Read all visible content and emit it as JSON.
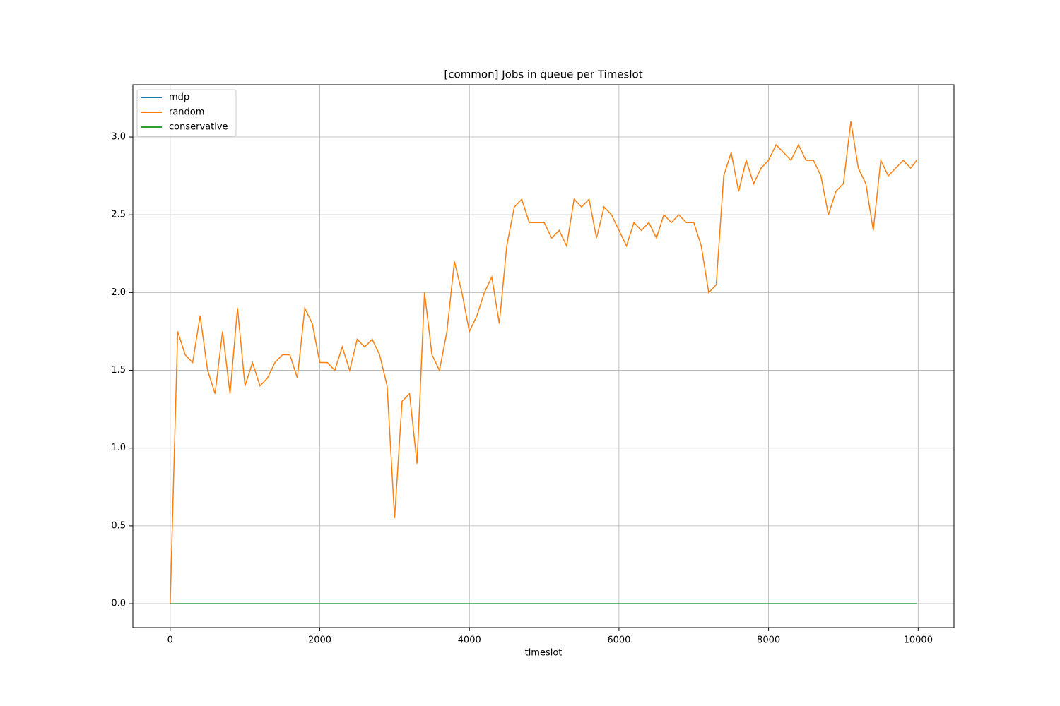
{
  "chart_data": {
    "type": "line",
    "title": "[common] Jobs in queue per Timeslot",
    "x_label": "timeslot",
    "x": [
      0,
      100,
      200,
      300,
      400,
      500,
      600,
      700,
      800,
      900,
      1000,
      1100,
      1200,
      1300,
      1400,
      1500,
      1600,
      1700,
      1800,
      1900,
      2000,
      2100,
      2200,
      2300,
      2400,
      2500,
      2600,
      2700,
      2800,
      2900,
      3000,
      3100,
      3200,
      3300,
      3400,
      3500,
      3600,
      3700,
      3800,
      3900,
      4000,
      4100,
      4200,
      4300,
      4400,
      4500,
      4600,
      4700,
      4800,
      4900,
      5000,
      5100,
      5200,
      5300,
      5400,
      5500,
      5600,
      5700,
      5800,
      5900,
      6000,
      6100,
      6200,
      6300,
      6400,
      6500,
      6600,
      6700,
      6800,
      6900,
      7000,
      7100,
      7200,
      7300,
      7400,
      7500,
      7600,
      7700,
      7800,
      7900,
      8000,
      8100,
      8200,
      8300,
      8400,
      8500,
      8600,
      8700,
      8800,
      8900,
      9000,
      9100,
      9200,
      9300,
      9400,
      9500,
      9600,
      9700,
      9800,
      9900,
      9980
    ],
    "series": [
      {
        "name": "mdp",
        "color": "#1f77b4",
        "values": [
          0,
          0,
          0,
          0,
          0,
          0,
          0,
          0,
          0,
          0,
          0,
          0,
          0,
          0,
          0,
          0,
          0,
          0,
          0,
          0,
          0,
          0,
          0,
          0,
          0,
          0,
          0,
          0,
          0,
          0,
          0,
          0,
          0,
          0,
          0,
          0,
          0,
          0,
          0,
          0,
          0,
          0,
          0,
          0,
          0,
          0,
          0,
          0,
          0,
          0,
          0,
          0,
          0,
          0,
          0,
          0,
          0,
          0,
          0,
          0,
          0,
          0,
          0,
          0,
          0,
          0,
          0,
          0,
          0,
          0,
          0,
          0,
          0,
          0,
          0,
          0,
          0,
          0,
          0,
          0,
          0,
          0,
          0,
          0,
          0,
          0,
          0,
          0,
          0,
          0,
          0,
          0,
          0,
          0,
          0,
          0,
          0,
          0,
          0,
          0,
          0
        ]
      },
      {
        "name": "random",
        "color": "#ff7f0e",
        "values": [
          0,
          1.75,
          1.6,
          1.55,
          1.85,
          1.5,
          1.35,
          1.75,
          1.35,
          1.9,
          1.4,
          1.55,
          1.4,
          1.45,
          1.55,
          1.6,
          1.6,
          1.45,
          1.9,
          1.8,
          1.55,
          1.55,
          1.5,
          1.65,
          1.5,
          1.7,
          1.65,
          1.7,
          1.6,
          1.4,
          0.55,
          1.3,
          1.35,
          0.9,
          2.0,
          1.6,
          1.5,
          1.75,
          2.2,
          2.0,
          1.75,
          1.85,
          2.0,
          2.1,
          1.8,
          2.3,
          2.55,
          2.6,
          2.45,
          2.45,
          2.45,
          2.35,
          2.4,
          2.3,
          2.6,
          2.55,
          2.6,
          2.35,
          2.55,
          2.5,
          2.4,
          2.3,
          2.45,
          2.4,
          2.45,
          2.35,
          2.5,
          2.45,
          2.5,
          2.45,
          2.45,
          2.3,
          2.0,
          2.05,
          2.75,
          2.9,
          2.65,
          2.85,
          2.7,
          2.8,
          2.85,
          2.95,
          2.9,
          2.85,
          2.95,
          2.85,
          2.85,
          2.75,
          2.5,
          2.65,
          2.7,
          3.1,
          2.8,
          2.7,
          2.4,
          2.85,
          2.75,
          2.8,
          2.85,
          2.8,
          2.85
        ]
      },
      {
        "name": "conservative",
        "color": "#2ca02c",
        "values": [
          0,
          0,
          0,
          0,
          0,
          0,
          0,
          0,
          0,
          0,
          0,
          0,
          0,
          0,
          0,
          0,
          0,
          0,
          0,
          0,
          0,
          0,
          0,
          0,
          0,
          0,
          0,
          0,
          0,
          0,
          0,
          0,
          0,
          0,
          0,
          0,
          0,
          0,
          0,
          0,
          0,
          0,
          0,
          0,
          0,
          0,
          0,
          0,
          0,
          0,
          0,
          0,
          0,
          0,
          0,
          0,
          0,
          0,
          0,
          0,
          0,
          0,
          0,
          0,
          0,
          0,
          0,
          0,
          0,
          0,
          0,
          0,
          0,
          0,
          0,
          0,
          0,
          0,
          0,
          0,
          0,
          0,
          0,
          0,
          0,
          0,
          0,
          0,
          0,
          0,
          0,
          0,
          0,
          0,
          0,
          0,
          0,
          0,
          0,
          0,
          0
        ]
      }
    ],
    "xlim": [
      -499,
      10479
    ],
    "ylim": [
      -0.154,
      3.336
    ],
    "xticks": [
      0,
      2000,
      4000,
      6000,
      8000,
      10000
    ],
    "yticks": [
      {
        "value": 0,
        "label": "0.0"
      },
      0.5,
      {
        "value": 1,
        "label": "1.0"
      },
      1.5,
      {
        "value": 2,
        "label": "2.0"
      },
      2.5,
      {
        "value": 3,
        "label": "3.0"
      }
    ],
    "grid": true,
    "legend": "upper left"
  }
}
